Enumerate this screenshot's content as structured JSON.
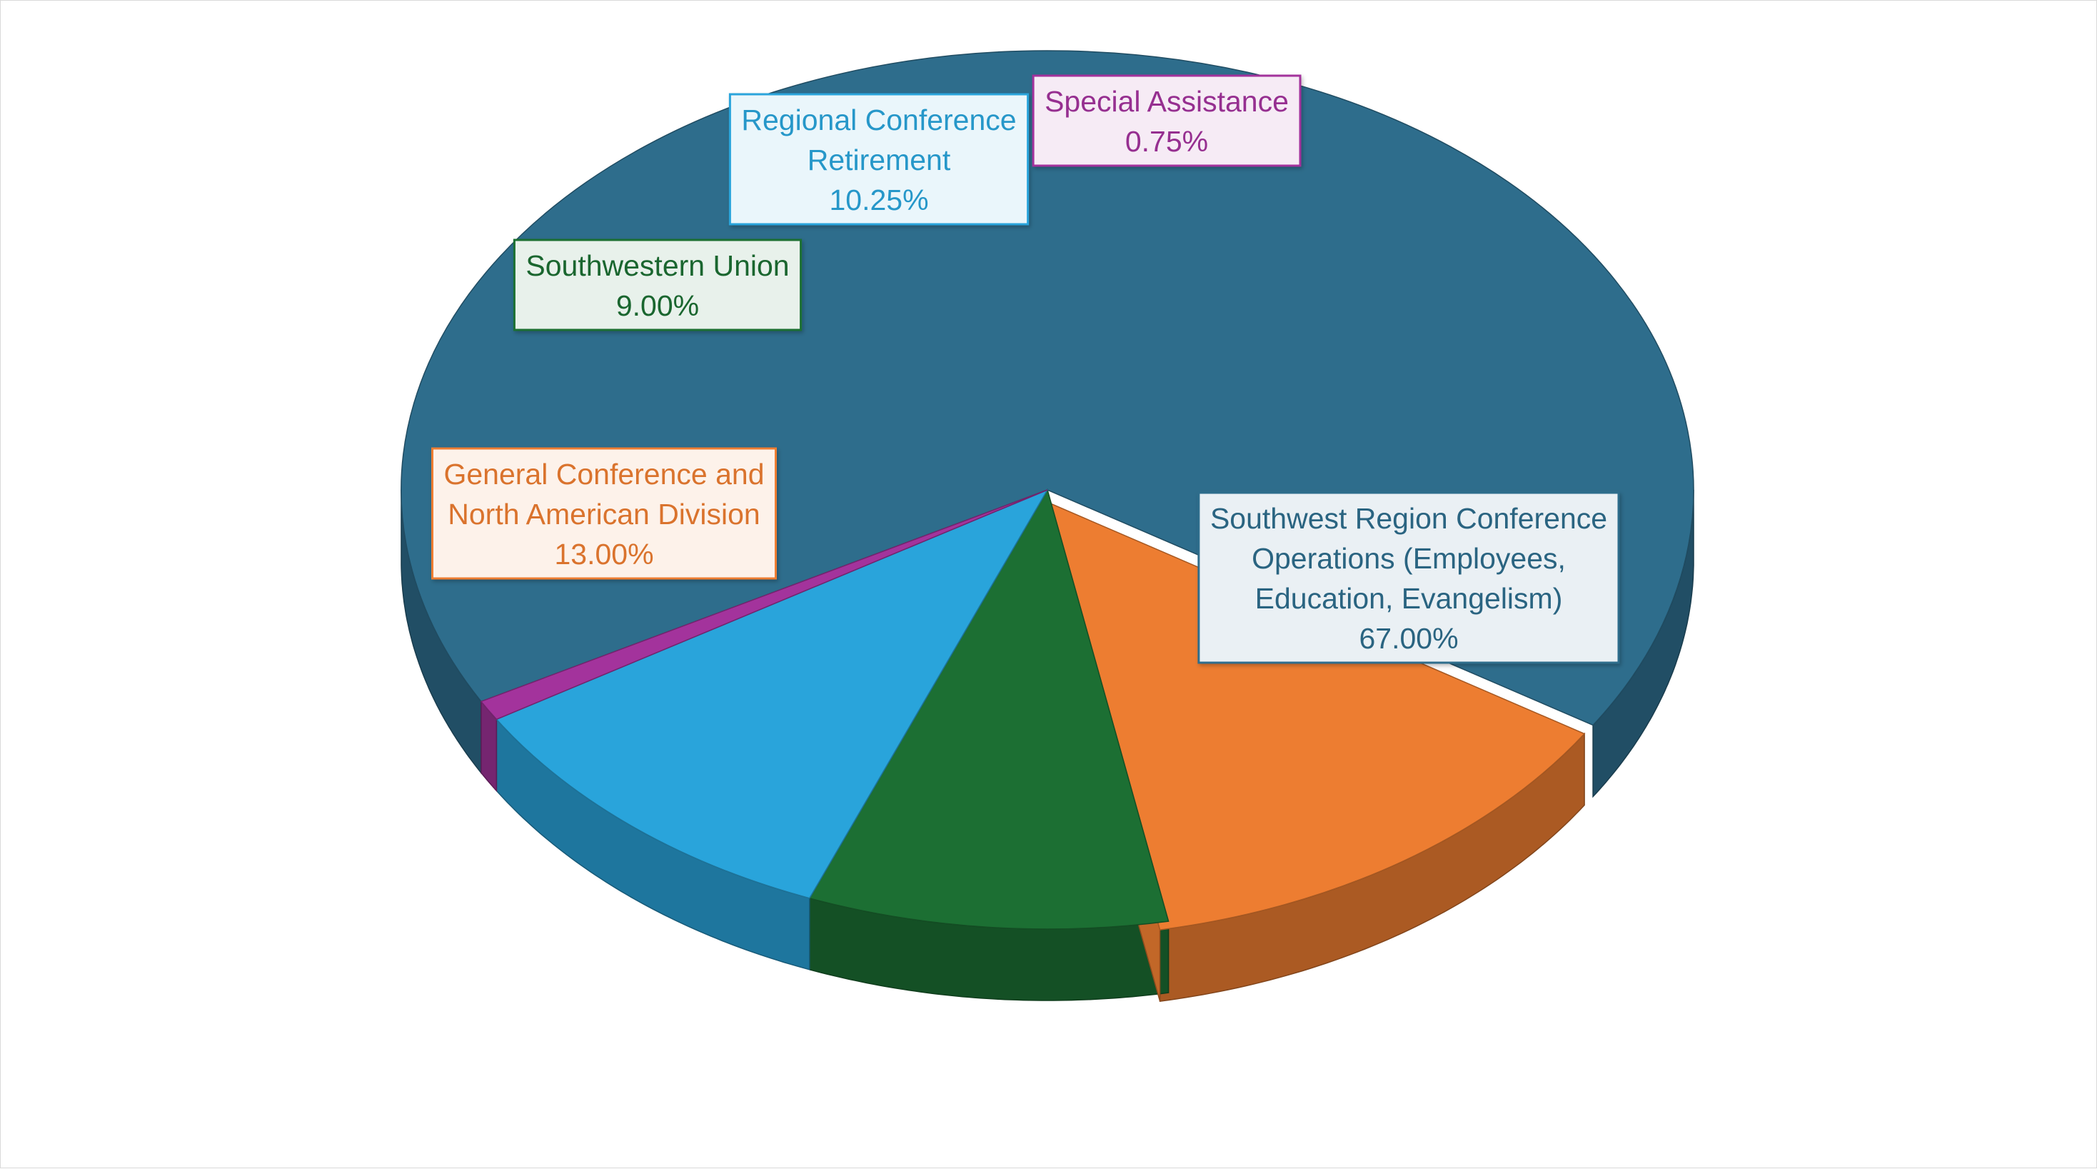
{
  "chart_data": {
    "type": "pie",
    "style": "3d",
    "title": "",
    "slices": [
      {
        "name_lines": [
          "Southwest Region Conference",
          "Operations (Employees,",
          "Education, Evangelism)"
        ],
        "value": 67.0,
        "value_label": "67.00%",
        "color": "#2e6d8c"
      },
      {
        "name_lines": [
          "General Conference and",
          "North American Division"
        ],
        "value": 13.0,
        "value_label": "13.00%",
        "color": "#ed7d31"
      },
      {
        "name_lines": [
          "Southwestern Union"
        ],
        "value": 9.0,
        "value_label": "9.00%",
        "color": "#1c6f33"
      },
      {
        "name_lines": [
          "Regional Conference",
          "Retirement"
        ],
        "value": 10.25,
        "value_label": "10.25%",
        "color": "#29a4db"
      },
      {
        "name_lines": [
          "Special Assistance"
        ],
        "value": 0.75,
        "value_label": "0.75%",
        "color": "#a3339c"
      }
    ],
    "legend": "none",
    "data_labels": "boxed, category name and percentage"
  }
}
